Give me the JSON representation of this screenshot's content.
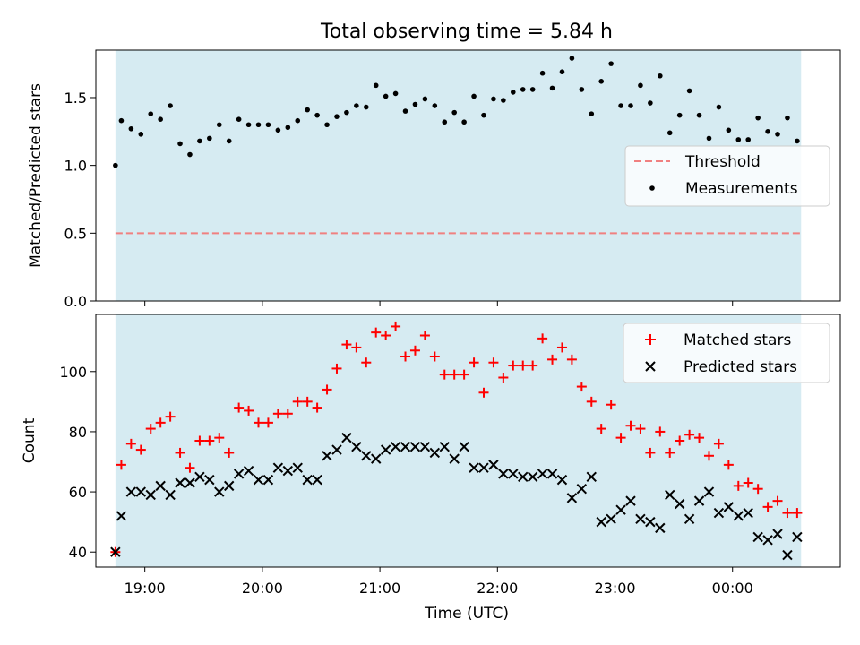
{
  "chart_data": [
    {
      "type": "scatter",
      "title": "Total observing time = 5.84 h",
      "ylabel": "Matched/Predicted stars",
      "xlabel": "",
      "xlim": [
        "18:35",
        "00:55"
      ],
      "ylim": [
        0,
        1.85
      ],
      "yticks": [
        0.0,
        0.5,
        1.0,
        1.5
      ],
      "ytick_labels": [
        "0.0",
        "0.5",
        "1.0",
        "1.5"
      ],
      "shaded_span": [
        "18:45",
        "00:35"
      ],
      "grid": false,
      "legend_position": "right",
      "series": [
        {
          "name": "Threshold",
          "kind": "dashed-line",
          "color": "#f08080",
          "value": 0.5
        },
        {
          "name": "Measurements",
          "kind": "dot",
          "color": "#000000",
          "x": [
            "18:45",
            "18:48",
            "18:53",
            "18:58",
            "19:03",
            "19:08",
            "19:13",
            "19:18",
            "19:23",
            "19:28",
            "19:33",
            "19:38",
            "19:43",
            "19:48",
            "19:53",
            "19:58",
            "20:03",
            "20:08",
            "20:13",
            "20:18",
            "20:23",
            "20:28",
            "20:33",
            "20:38",
            "20:43",
            "20:48",
            "20:53",
            "20:58",
            "21:03",
            "21:08",
            "21:13",
            "21:18",
            "21:23",
            "21:28",
            "21:33",
            "21:38",
            "21:43",
            "21:48",
            "21:53",
            "21:58",
            "22:03",
            "22:08",
            "22:13",
            "22:18",
            "22:23",
            "22:28",
            "22:33",
            "22:38",
            "22:43",
            "22:48",
            "22:53",
            "22:58",
            "23:03",
            "23:08",
            "23:13",
            "23:18",
            "23:23",
            "23:28",
            "23:33",
            "23:38",
            "23:43",
            "23:48",
            "23:53",
            "23:58",
            "00:03",
            "00:08",
            "00:13",
            "00:18",
            "00:23",
            "00:28",
            "00:33"
          ],
          "y": [
            1.0,
            1.33,
            1.27,
            1.23,
            1.38,
            1.34,
            1.44,
            1.16,
            1.08,
            1.18,
            1.2,
            1.3,
            1.18,
            1.34,
            1.3,
            1.3,
            1.3,
            1.26,
            1.28,
            1.33,
            1.41,
            1.37,
            1.3,
            1.36,
            1.39,
            1.44,
            1.43,
            1.59,
            1.51,
            1.53,
            1.4,
            1.45,
            1.49,
            1.44,
            1.32,
            1.39,
            1.32,
            1.51,
            1.37,
            1.49,
            1.48,
            1.54,
            1.56,
            1.56,
            1.68,
            1.57,
            1.69,
            1.79,
            1.56,
            1.38,
            1.62,
            1.75,
            1.44,
            1.44,
            1.59,
            1.46,
            1.66,
            1.24,
            1.37,
            1.55,
            1.37,
            1.2,
            1.43,
            1.26,
            1.19,
            1.19,
            1.35,
            1.25,
            1.23,
            1.35,
            1.18
          ]
        }
      ]
    },
    {
      "type": "scatter",
      "title": "",
      "ylabel": "Count",
      "xlabel": "Time (UTC)",
      "xlim": [
        "18:35",
        "00:55"
      ],
      "xticks": [
        "19:00",
        "20:00",
        "21:00",
        "22:00",
        "23:00",
        "00:00"
      ],
      "ylim": [
        35,
        119
      ],
      "yticks": [
        40,
        60,
        80,
        100
      ],
      "shaded_span": [
        "18:45",
        "00:35"
      ],
      "grid": false,
      "legend_position": "top-right",
      "series": [
        {
          "name": "Matched stars",
          "kind": "plus",
          "color": "#ff0000",
          "x": [
            "18:45",
            "18:48",
            "18:53",
            "18:58",
            "19:03",
            "19:08",
            "19:13",
            "19:18",
            "19:23",
            "19:28",
            "19:33",
            "19:38",
            "19:43",
            "19:48",
            "19:53",
            "19:58",
            "20:03",
            "20:08",
            "20:13",
            "20:18",
            "20:23",
            "20:28",
            "20:33",
            "20:38",
            "20:43",
            "20:48",
            "20:53",
            "20:58",
            "21:03",
            "21:08",
            "21:13",
            "21:18",
            "21:23",
            "21:28",
            "21:33",
            "21:38",
            "21:43",
            "21:48",
            "21:53",
            "21:58",
            "22:03",
            "22:08",
            "22:13",
            "22:18",
            "22:23",
            "22:28",
            "22:33",
            "22:38",
            "22:43",
            "22:48",
            "22:53",
            "22:58",
            "23:03",
            "23:08",
            "23:13",
            "23:18",
            "23:23",
            "23:28",
            "23:33",
            "23:38",
            "23:43",
            "23:48",
            "23:53",
            "23:58",
            "00:03",
            "00:08",
            "00:13",
            "00:18",
            "00:23",
            "00:28",
            "00:33"
          ],
          "y": [
            40,
            69,
            76,
            74,
            81,
            83,
            85,
            73,
            68,
            77,
            77,
            78,
            73,
            88,
            87,
            83,
            83,
            86,
            86,
            90,
            90,
            88,
            94,
            101,
            109,
            108,
            103,
            113,
            112,
            115,
            105,
            107,
            112,
            105,
            99,
            99,
            99,
            103,
            93,
            103,
            98,
            102,
            102,
            102,
            111,
            104,
            108,
            104,
            95,
            90,
            81,
            89,
            78,
            82,
            81,
            73,
            80,
            73,
            77,
            79,
            78,
            72,
            76,
            69,
            62,
            63,
            61,
            55,
            57,
            53,
            53
          ]
        },
        {
          "name": "Predicted stars",
          "kind": "x",
          "color": "#000000",
          "x": [
            "18:45",
            "18:48",
            "18:53",
            "18:58",
            "19:03",
            "19:08",
            "19:13",
            "19:18",
            "19:23",
            "19:28",
            "19:33",
            "19:38",
            "19:43",
            "19:48",
            "19:53",
            "19:58",
            "20:03",
            "20:08",
            "20:13",
            "20:18",
            "20:23",
            "20:28",
            "20:33",
            "20:38",
            "20:43",
            "20:48",
            "20:53",
            "20:58",
            "21:03",
            "21:08",
            "21:13",
            "21:18",
            "21:23",
            "21:28",
            "21:33",
            "21:38",
            "21:43",
            "21:48",
            "21:53",
            "21:58",
            "22:03",
            "22:08",
            "22:13",
            "22:18",
            "22:23",
            "22:28",
            "22:33",
            "22:38",
            "22:43",
            "22:48",
            "22:53",
            "22:58",
            "23:03",
            "23:08",
            "23:13",
            "23:18",
            "23:23",
            "23:28",
            "23:33",
            "23:38",
            "23:43",
            "23:48",
            "23:53",
            "23:58",
            "00:03",
            "00:08",
            "00:13",
            "00:18",
            "00:23",
            "00:28",
            "00:33"
          ],
          "y": [
            40,
            52,
            60,
            60,
            59,
            62,
            59,
            63,
            63,
            65,
            64,
            60,
            62,
            66,
            67,
            64,
            64,
            68,
            67,
            68,
            64,
            64,
            72,
            74,
            78,
            75,
            72,
            71,
            74,
            75,
            75,
            75,
            75,
            73,
            75,
            71,
            75,
            68,
            68,
            69,
            66,
            66,
            65,
            65,
            66,
            66,
            64,
            58,
            61,
            65,
            50,
            51,
            54,
            57,
            51,
            50,
            48,
            59,
            56,
            51,
            57,
            60,
            53,
            55,
            52,
            53,
            45,
            44,
            46,
            39,
            45
          ]
        }
      ]
    }
  ]
}
